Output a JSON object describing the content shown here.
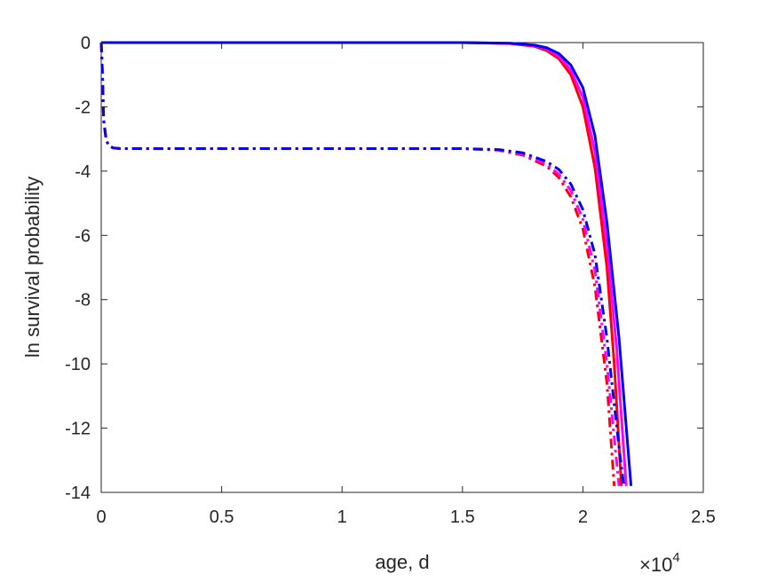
{
  "chart_data": {
    "type": "line",
    "title": "",
    "xlabel": "age, d",
    "ylabel": "ln survival probability",
    "x_multiplier": "×10",
    "x_multiplier_exp": "4",
    "xlim": [
      0,
      2.5
    ],
    "ylim": [
      -14,
      0
    ],
    "x_scale_factor": 10000,
    "xticks": [
      0,
      0.5,
      1,
      1.5,
      2,
      2.5
    ],
    "xtick_labels": [
      "0",
      "0.5",
      "1",
      "1.5",
      "2",
      "2.5"
    ],
    "yticks": [
      0,
      -2,
      -4,
      -6,
      -8,
      -10,
      -12,
      -14
    ],
    "ytick_labels": [
      "0",
      "-2",
      "-4",
      "-6",
      "-8",
      "-10",
      "-12",
      "-14"
    ],
    "grid": false,
    "legend": "none",
    "series": [
      {
        "color": "#ff0000",
        "dash": "solid",
        "x": [
          0,
          1.0,
          1.5,
          1.7,
          1.8,
          1.85,
          1.9,
          1.95,
          2.0,
          2.05,
          2.1,
          2.13,
          2.16
        ],
        "y": [
          0,
          0,
          0,
          -0.03,
          -0.12,
          -0.25,
          -0.5,
          -1.0,
          -2.0,
          -3.9,
          -7.0,
          -10.0,
          -13.8
        ]
      },
      {
        "color": "#ff00ff",
        "dash": "solid",
        "x": [
          0,
          1.0,
          1.5,
          1.7,
          1.8,
          1.85,
          1.9,
          1.95,
          2.0,
          2.05,
          2.1,
          2.14,
          2.18
        ],
        "y": [
          0,
          0,
          0,
          -0.025,
          -0.1,
          -0.2,
          -0.42,
          -0.85,
          -1.7,
          -3.4,
          -6.3,
          -9.5,
          -13.8
        ]
      },
      {
        "color": "#0000ff",
        "dash": "solid",
        "x": [
          0,
          1.0,
          1.5,
          1.7,
          1.8,
          1.85,
          1.9,
          1.95,
          2.0,
          2.05,
          2.1,
          2.15,
          2.2
        ],
        "y": [
          0,
          0,
          0,
          -0.02,
          -0.08,
          -0.16,
          -0.34,
          -0.7,
          -1.4,
          -2.9,
          -5.6,
          -9.2,
          -13.8
        ]
      },
      {
        "color": "#ff0000",
        "dash": "dashdot",
        "x": [
          0,
          0.005,
          0.01,
          0.02,
          0.03,
          0.05,
          0.08,
          0.5,
          1.0,
          1.5,
          1.65,
          1.75,
          1.85,
          1.9,
          1.95,
          2.0,
          2.05,
          2.1,
          2.13
        ],
        "y": [
          0,
          -1.0,
          -2.4,
          -3.0,
          -3.2,
          -3.28,
          -3.3,
          -3.3,
          -3.3,
          -3.3,
          -3.35,
          -3.5,
          -3.85,
          -4.2,
          -4.8,
          -5.8,
          -7.6,
          -10.6,
          -13.8
        ]
      },
      {
        "color": "#ff00ff",
        "dash": "dashdot",
        "x": [
          0,
          0.005,
          0.01,
          0.02,
          0.03,
          0.05,
          0.08,
          0.5,
          1.0,
          1.5,
          1.65,
          1.75,
          1.85,
          1.9,
          1.95,
          2.0,
          2.05,
          2.1,
          2.15
        ],
        "y": [
          0,
          -1.0,
          -2.4,
          -3.0,
          -3.2,
          -3.28,
          -3.3,
          -3.3,
          -3.3,
          -3.3,
          -3.34,
          -3.47,
          -3.78,
          -4.1,
          -4.6,
          -5.5,
          -7.1,
          -10.0,
          -13.8
        ]
      },
      {
        "color": "#0000ff",
        "dash": "dashdot",
        "x": [
          0,
          0.005,
          0.01,
          0.02,
          0.03,
          0.05,
          0.08,
          0.5,
          1.0,
          1.5,
          1.65,
          1.75,
          1.85,
          1.9,
          1.95,
          2.0,
          2.05,
          2.1,
          2.15,
          2.17
        ],
        "y": [
          0,
          -1.0,
          -2.4,
          -3.0,
          -3.2,
          -3.28,
          -3.3,
          -3.3,
          -3.3,
          -3.3,
          -3.33,
          -3.43,
          -3.7,
          -3.95,
          -4.4,
          -5.2,
          -6.6,
          -9.2,
          -12.6,
          -13.8
        ]
      }
    ]
  }
}
